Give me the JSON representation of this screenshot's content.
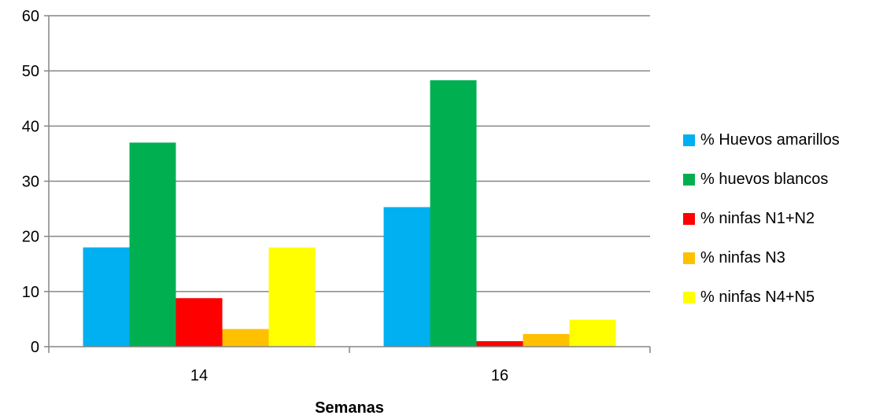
{
  "chart_data": {
    "type": "bar",
    "categories": [
      "14",
      "16"
    ],
    "series": [
      {
        "name": "% Huevos amarillos",
        "color": "#00B0F0",
        "values": [
          18,
          25.3
        ]
      },
      {
        "name": "% huevos blancos",
        "color": "#00B050",
        "values": [
          37,
          48.3
        ]
      },
      {
        "name": "% ninfas N1+N2",
        "color": "#FF0000",
        "values": [
          8.8,
          1
        ]
      },
      {
        "name": "% ninfas N3",
        "color": "#FFC000",
        "values": [
          3.2,
          2.3
        ]
      },
      {
        "name": "% ninfas N4+N5",
        "color": "#FFFF00",
        "values": [
          18,
          4.9
        ]
      }
    ],
    "yticks": [
      "0",
      "10",
      "20",
      "30",
      "40",
      "50",
      "60"
    ],
    "ylim": [
      0,
      60
    ],
    "xlabel": "Semanas",
    "ylabel": "",
    "grid": true,
    "legend": "right"
  }
}
